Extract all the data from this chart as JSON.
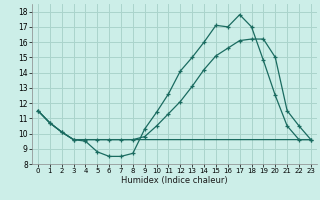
{
  "xlabel": "Humidex (Indice chaleur)",
  "bg_color": "#cceee8",
  "grid_color": "#aad4cc",
  "line_color": "#1a6b60",
  "xlim": [
    -0.5,
    23.5
  ],
  "ylim": [
    8,
    18.5
  ],
  "yticks": [
    8,
    9,
    10,
    11,
    12,
    13,
    14,
    15,
    16,
    17,
    18
  ],
  "xticks": [
    0,
    1,
    2,
    3,
    4,
    5,
    6,
    7,
    8,
    9,
    10,
    11,
    12,
    13,
    14,
    15,
    16,
    17,
    18,
    19,
    20,
    21,
    22,
    23
  ],
  "line1_x": [
    0,
    1,
    2,
    3,
    4,
    5,
    6,
    7,
    8,
    9,
    10,
    11,
    12,
    13,
    14,
    15,
    16,
    17,
    18,
    19,
    20,
    21,
    22,
    23
  ],
  "line1_y": [
    11.5,
    10.7,
    10.1,
    9.6,
    9.5,
    8.8,
    8.5,
    8.5,
    8.7,
    10.3,
    11.4,
    12.6,
    14.1,
    15.0,
    16.0,
    17.1,
    17.0,
    17.8,
    17.0,
    14.8,
    12.5,
    10.5,
    9.6,
    9.6
  ],
  "line2_x": [
    0,
    1,
    2,
    3,
    4,
    5,
    6,
    7,
    8,
    9,
    10,
    11,
    12,
    13,
    14,
    15,
    16,
    17,
    18,
    19,
    20,
    21,
    22,
    23
  ],
  "line2_y": [
    11.5,
    10.7,
    10.1,
    9.6,
    9.6,
    9.6,
    9.6,
    9.6,
    9.6,
    9.6,
    9.6,
    9.6,
    9.6,
    9.6,
    9.6,
    9.6,
    9.6,
    9.6,
    9.6,
    9.6,
    9.6,
    9.6,
    9.6,
    9.6
  ],
  "line3_x": [
    0,
    1,
    2,
    3,
    4,
    5,
    6,
    7,
    8,
    9,
    10,
    11,
    12,
    13,
    14,
    15,
    16,
    17,
    18,
    19,
    20,
    21,
    22,
    23
  ],
  "line3_y": [
    11.5,
    10.7,
    10.1,
    9.6,
    9.6,
    9.6,
    9.6,
    9.6,
    9.6,
    9.8,
    10.5,
    11.3,
    12.1,
    13.1,
    14.2,
    15.1,
    15.6,
    16.1,
    16.2,
    16.2,
    15.0,
    11.5,
    10.5,
    9.6
  ]
}
